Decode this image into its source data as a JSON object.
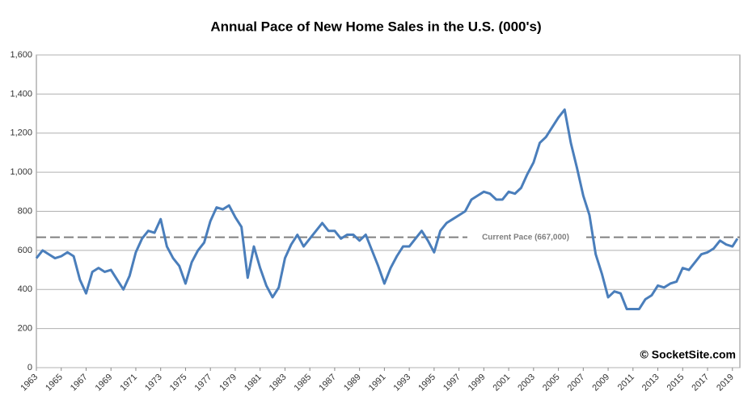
{
  "chart_data": {
    "type": "line",
    "title": "Annual Pace of New Home Sales in the U.S. (000's)",
    "watermark": "© SocketSite.com",
    "reference_line": {
      "value": 667,
      "label": "Current Pace (667,000)",
      "color": "#808080"
    },
    "xlim": [
      1963,
      2019.6
    ],
    "xticks": [
      1963,
      1965,
      1967,
      1969,
      1971,
      1973,
      1975,
      1977,
      1979,
      1981,
      1983,
      1985,
      1987,
      1989,
      1991,
      1993,
      1995,
      1997,
      1999,
      2001,
      2003,
      2005,
      2007,
      2009,
      2011,
      2013,
      2015,
      2017,
      2019
    ],
    "ylim": [
      0,
      1600
    ],
    "yticks": [
      0,
      200,
      400,
      600,
      800,
      {
        "value": 1000,
        "label": "1,000"
      },
      {
        "value": 1200,
        "label": "1,200"
      },
      {
        "value": 1400,
        "label": "1,400"
      },
      {
        "value": 1600,
        "label": "1,600"
      }
    ],
    "grid": true,
    "x": [
      1963,
      1963.5,
      1964,
      1964.5,
      1965,
      1965.5,
      1966,
      1966.5,
      1967,
      1967.5,
      1968,
      1968.5,
      1969,
      1969.5,
      1970,
      1970.5,
      1971,
      1971.5,
      1972,
      1972.5,
      1973,
      1973.5,
      1974,
      1974.5,
      1975,
      1975.5,
      1976,
      1976.5,
      1977,
      1977.5,
      1978,
      1978.5,
      1979,
      1979.5,
      1980,
      1980.5,
      1981,
      1981.5,
      1982,
      1982.5,
      1983,
      1983.5,
      1984,
      1984.5,
      1985,
      1985.5,
      1986,
      1986.5,
      1987,
      1987.5,
      1988,
      1988.5,
      1989,
      1989.5,
      1990,
      1990.5,
      1991,
      1991.5,
      1992,
      1992.5,
      1993,
      1993.5,
      1994,
      1994.5,
      1995,
      1995.5,
      1996,
      1996.5,
      1997,
      1997.5,
      1998,
      1998.5,
      1999,
      1999.5,
      2000,
      2000.5,
      2001,
      2001.5,
      2002,
      2002.5,
      2003,
      2003.5,
      2004,
      2004.5,
      2005,
      2005.5,
      2006,
      2006.5,
      2007,
      2007.5,
      2008,
      2008.5,
      2009,
      2009.5,
      2010,
      2010.5,
      2011,
      2011.5,
      2012,
      2012.5,
      2013,
      2013.5,
      2014,
      2014.5,
      2015,
      2015.5,
      2016,
      2016.5,
      2017,
      2017.5,
      2018,
      2018.5,
      2019,
      2019.4
    ],
    "series": [
      {
        "name": "New Home Sales",
        "color": "#4a7ebb",
        "values": [
          560,
          600,
          580,
          560,
          570,
          590,
          570,
          450,
          380,
          490,
          510,
          490,
          500,
          450,
          400,
          470,
          590,
          660,
          700,
          690,
          760,
          620,
          560,
          520,
          430,
          540,
          600,
          640,
          750,
          820,
          810,
          830,
          770,
          720,
          460,
          620,
          510,
          420,
          360,
          410,
          560,
          630,
          680,
          620,
          660,
          700,
          740,
          700,
          700,
          660,
          680,
          680,
          650,
          680,
          600,
          520,
          430,
          510,
          570,
          620,
          620,
          660,
          700,
          650,
          590,
          700,
          740,
          760,
          780,
          800,
          860,
          880,
          900,
          890,
          860,
          860,
          900,
          890,
          920,
          990,
          1050,
          1150,
          1180,
          1230,
          1280,
          1320,
          1150,
          1020,
          880,
          780,
          580,
          480,
          360,
          390,
          380,
          300,
          300,
          300,
          350,
          370,
          420,
          410,
          430,
          440,
          510,
          500,
          540,
          580,
          590,
          610,
          650,
          630,
          620,
          660
        ]
      }
    ]
  }
}
